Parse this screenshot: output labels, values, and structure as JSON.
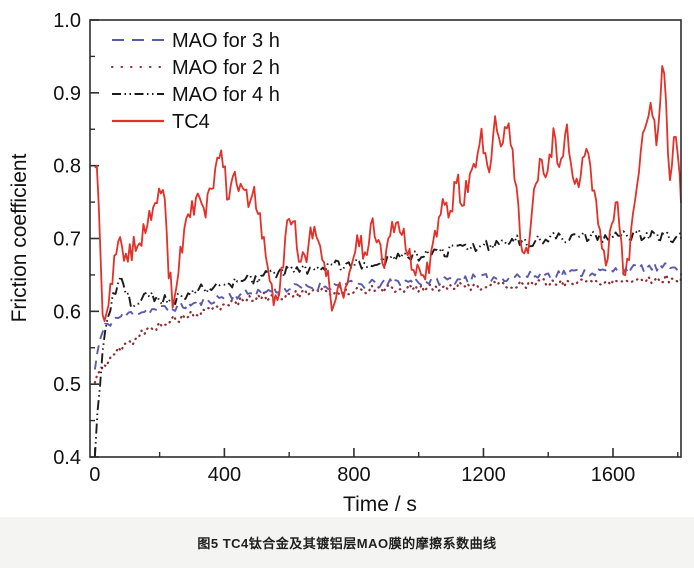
{
  "figure": {
    "caption": "图5  TC4钛合金及其镀铝层MAO膜的摩擦系数曲线"
  },
  "chart_data": {
    "type": "line",
    "title": "",
    "xlabel": "Time / s",
    "ylabel": "Friction coefficient",
    "xlim": [
      -15,
      1810
    ],
    "ylim": [
      0.4,
      1.0
    ],
    "x_tick_values": [
      0,
      400,
      800,
      1200,
      1600
    ],
    "x_tick_labels": [
      "0",
      "400",
      "800",
      "1200",
      "1600"
    ],
    "x_minor_ticks": [
      200,
      600,
      1000,
      1400,
      1800
    ],
    "y_tick_values": [
      0.4,
      0.5,
      0.6,
      0.7,
      0.8,
      0.9,
      1.0
    ],
    "y_tick_labels": [
      "0.4",
      "0.5",
      "0.6",
      "0.7",
      "0.8",
      "0.9",
      "1.0"
    ],
    "y_minor_ticks": [
      0.45,
      0.55,
      0.65,
      0.75,
      0.85,
      0.95
    ],
    "grid": false,
    "legend_position": "top-left",
    "axis_color": "#2e2e2e",
    "text_color": "#111111",
    "series": [
      {
        "id": "mao-3h",
        "name": "MAO for 3 h",
        "color": "#5b5baa",
        "style": "dashed",
        "width": 1.9,
        "z": 2,
        "noise": 0.006,
        "seed": 11,
        "step": 8,
        "trend": [
          [
            0,
            0.52
          ],
          [
            12,
            0.555
          ],
          [
            30,
            0.578
          ],
          [
            55,
            0.588
          ],
          [
            85,
            0.594
          ],
          [
            120,
            0.598
          ],
          [
            160,
            0.601
          ],
          [
            200,
            0.603
          ],
          [
            250,
            0.606
          ],
          [
            300,
            0.61
          ],
          [
            350,
            0.615
          ],
          [
            400,
            0.62
          ],
          [
            460,
            0.624
          ],
          [
            520,
            0.628
          ],
          [
            580,
            0.631
          ],
          [
            640,
            0.633
          ],
          [
            700,
            0.635
          ],
          [
            760,
            0.636
          ],
          [
            820,
            0.637
          ],
          [
            880,
            0.638
          ],
          [
            940,
            0.64
          ],
          [
            1000,
            0.641
          ],
          [
            1060,
            0.642
          ],
          [
            1120,
            0.644
          ],
          [
            1180,
            0.645
          ],
          [
            1240,
            0.646
          ],
          [
            1300,
            0.648
          ],
          [
            1360,
            0.649
          ],
          [
            1420,
            0.651
          ],
          [
            1480,
            0.653
          ],
          [
            1540,
            0.654
          ],
          [
            1600,
            0.656
          ],
          [
            1660,
            0.658
          ],
          [
            1720,
            0.66
          ],
          [
            1810,
            0.661
          ]
        ]
      },
      {
        "id": "mao-2h",
        "name": "MAO for 2 h",
        "color": "#8e2f35",
        "style": "dotted",
        "width": 2.2,
        "z": 1,
        "noise": 0.006,
        "seed": 5,
        "step": 9,
        "trend": [
          [
            0,
            0.5
          ],
          [
            15,
            0.52
          ],
          [
            40,
            0.531
          ],
          [
            70,
            0.545
          ],
          [
            105,
            0.556
          ],
          [
            145,
            0.569
          ],
          [
            185,
            0.579
          ],
          [
            225,
            0.586
          ],
          [
            265,
            0.591
          ],
          [
            305,
            0.595
          ],
          [
            345,
            0.599
          ],
          [
            385,
            0.606
          ],
          [
            425,
            0.612
          ],
          [
            465,
            0.616
          ],
          [
            510,
            0.619
          ],
          [
            560,
            0.621
          ],
          [
            610,
            0.623
          ],
          [
            660,
            0.625
          ],
          [
            710,
            0.626
          ],
          [
            760,
            0.627
          ],
          [
            810,
            0.629
          ],
          [
            860,
            0.63
          ],
          [
            910,
            0.631
          ],
          [
            960,
            0.632
          ],
          [
            1010,
            0.632
          ],
          [
            1060,
            0.633
          ],
          [
            1110,
            0.634
          ],
          [
            1160,
            0.635
          ],
          [
            1210,
            0.635
          ],
          [
            1260,
            0.636
          ],
          [
            1310,
            0.637
          ],
          [
            1360,
            0.638
          ],
          [
            1410,
            0.639
          ],
          [
            1460,
            0.64
          ],
          [
            1510,
            0.64
          ],
          [
            1560,
            0.641
          ],
          [
            1610,
            0.642
          ],
          [
            1660,
            0.643
          ],
          [
            1710,
            0.644
          ],
          [
            1810,
            0.645
          ]
        ]
      },
      {
        "id": "mao-4h",
        "name": "MAO for 4 h",
        "color": "#1b1b1d",
        "style": "dashdotdot",
        "width": 1.9,
        "z": 3,
        "noise": 0.008,
        "seed": 9,
        "step": 8,
        "trend": [
          [
            0,
            0.4
          ],
          [
            8,
            0.455
          ],
          [
            18,
            0.515
          ],
          [
            30,
            0.565
          ],
          [
            45,
            0.6
          ],
          [
            62,
            0.628
          ],
          [
            80,
            0.645
          ],
          [
            100,
            0.622
          ],
          [
            118,
            0.602
          ],
          [
            138,
            0.614
          ],
          [
            165,
            0.621
          ],
          [
            200,
            0.617
          ],
          [
            240,
            0.615
          ],
          [
            280,
            0.624
          ],
          [
            320,
            0.629
          ],
          [
            360,
            0.632
          ],
          [
            400,
            0.636
          ],
          [
            450,
            0.64
          ],
          [
            500,
            0.645
          ],
          [
            550,
            0.65
          ],
          [
            600,
            0.655
          ],
          [
            650,
            0.658
          ],
          [
            700,
            0.66
          ],
          [
            750,
            0.663
          ],
          [
            800,
            0.665
          ],
          [
            850,
            0.668
          ],
          [
            900,
            0.67
          ],
          [
            950,
            0.673
          ],
          [
            1000,
            0.676
          ],
          [
            1050,
            0.68
          ],
          [
            1100,
            0.684
          ],
          [
            1150,
            0.686
          ],
          [
            1200,
            0.69
          ],
          [
            1250,
            0.694
          ],
          [
            1300,
            0.698
          ],
          [
            1350,
            0.695
          ],
          [
            1400,
            0.7
          ],
          [
            1450,
            0.701
          ],
          [
            1500,
            0.704
          ],
          [
            1550,
            0.701
          ],
          [
            1600,
            0.705
          ],
          [
            1650,
            0.702
          ],
          [
            1700,
            0.706
          ],
          [
            1750,
            0.701
          ],
          [
            1810,
            0.703
          ]
        ]
      },
      {
        "id": "tc4",
        "name": "TC4",
        "color": "#e23128",
        "style": "solid",
        "width": 1.8,
        "z": 4,
        "noise": 0.015,
        "seed": 2,
        "step": 6,
        "trend": [
          [
            0,
            0.79
          ],
          [
            8,
            0.81
          ],
          [
            25,
            0.57
          ],
          [
            45,
            0.62
          ],
          [
            70,
            0.7
          ],
          [
            100,
            0.67
          ],
          [
            130,
            0.7
          ],
          [
            160,
            0.71
          ],
          [
            190,
            0.76
          ],
          [
            210,
            0.78
          ],
          [
            228,
            0.66
          ],
          [
            245,
            0.6
          ],
          [
            262,
            0.68
          ],
          [
            285,
            0.72
          ],
          [
            310,
            0.75
          ],
          [
            340,
            0.74
          ],
          [
            370,
            0.78
          ],
          [
            392,
            0.83
          ],
          [
            410,
            0.75
          ],
          [
            430,
            0.78
          ],
          [
            452,
            0.77
          ],
          [
            472,
            0.75
          ],
          [
            492,
            0.77
          ],
          [
            512,
            0.72
          ],
          [
            535,
            0.66
          ],
          [
            555,
            0.6
          ],
          [
            575,
            0.65
          ],
          [
            595,
            0.72
          ],
          [
            615,
            0.73
          ],
          [
            635,
            0.66
          ],
          [
            655,
            0.68
          ],
          [
            675,
            0.72
          ],
          [
            695,
            0.68
          ],
          [
            715,
            0.66
          ],
          [
            735,
            0.6
          ],
          [
            755,
            0.64
          ],
          [
            775,
            0.62
          ],
          [
            795,
            0.68
          ],
          [
            815,
            0.7
          ],
          [
            835,
            0.67
          ],
          [
            855,
            0.72
          ],
          [
            875,
            0.69
          ],
          [
            895,
            0.66
          ],
          [
            915,
            0.71
          ],
          [
            935,
            0.73
          ],
          [
            955,
            0.7
          ],
          [
            975,
            0.67
          ],
          [
            995,
            0.66
          ],
          [
            1015,
            0.64
          ],
          [
            1035,
            0.67
          ],
          [
            1055,
            0.71
          ],
          [
            1075,
            0.76
          ],
          [
            1095,
            0.72
          ],
          [
            1115,
            0.79
          ],
          [
            1135,
            0.75
          ],
          [
            1155,
            0.78
          ],
          [
            1175,
            0.81
          ],
          [
            1195,
            0.84
          ],
          [
            1215,
            0.79
          ],
          [
            1235,
            0.86
          ],
          [
            1255,
            0.82
          ],
          [
            1275,
            0.87
          ],
          [
            1295,
            0.8
          ],
          [
            1315,
            0.7
          ],
          [
            1335,
            0.67
          ],
          [
            1355,
            0.76
          ],
          [
            1375,
            0.81
          ],
          [
            1395,
            0.78
          ],
          [
            1415,
            0.84
          ],
          [
            1435,
            0.8
          ],
          [
            1455,
            0.85
          ],
          [
            1475,
            0.8
          ],
          [
            1495,
            0.77
          ],
          [
            1515,
            0.83
          ],
          [
            1535,
            0.78
          ],
          [
            1555,
            0.73
          ],
          [
            1575,
            0.66
          ],
          [
            1595,
            0.71
          ],
          [
            1615,
            0.76
          ],
          [
            1635,
            0.63
          ],
          [
            1655,
            0.7
          ],
          [
            1675,
            0.78
          ],
          [
            1695,
            0.85
          ],
          [
            1715,
            0.89
          ],
          [
            1735,
            0.84
          ],
          [
            1755,
            0.94
          ],
          [
            1775,
            0.79
          ],
          [
            1795,
            0.85
          ],
          [
            1810,
            0.76
          ]
        ]
      }
    ]
  }
}
